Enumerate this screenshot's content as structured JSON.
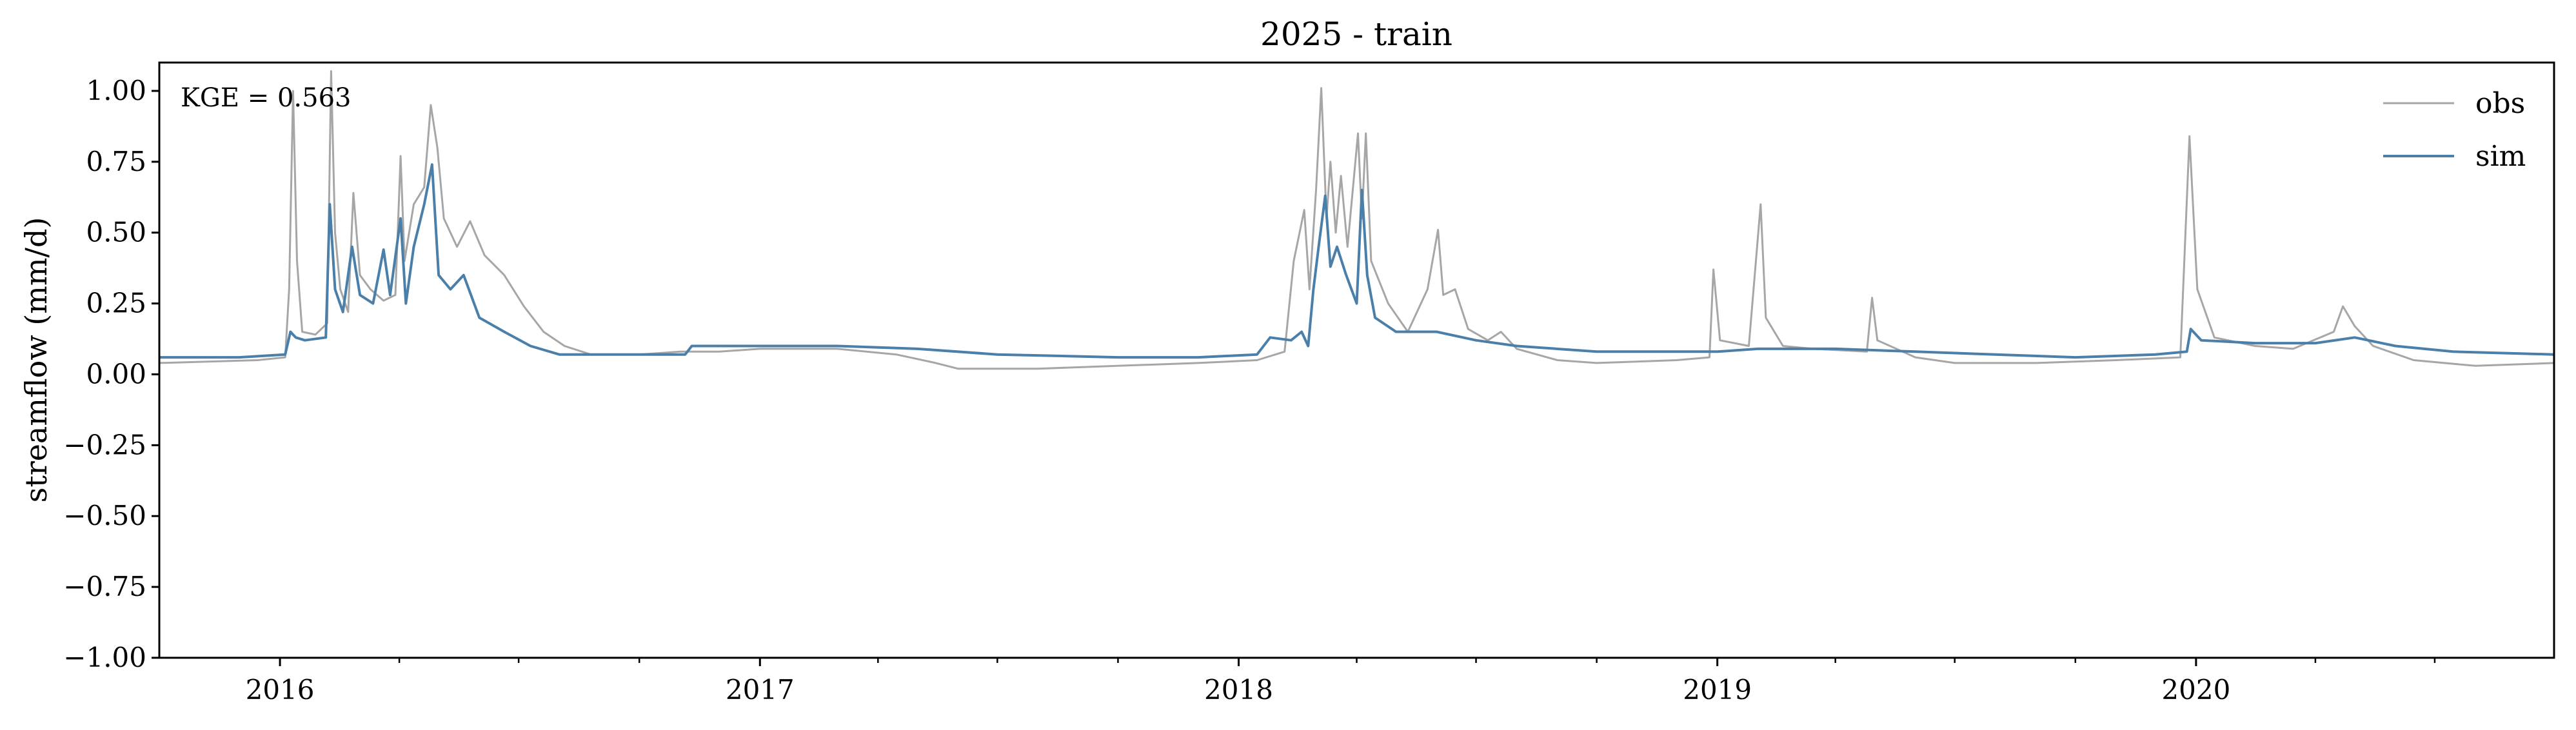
{
  "chart_data": {
    "type": "line",
    "title": "2025 - train",
    "xlabel": "",
    "ylabel": "streamflow (mm/d)",
    "xlim": [
      "2015-10-01",
      "2020-09-30"
    ],
    "ylim": [
      -1.0,
      1.1
    ],
    "grid": false,
    "legend_position": "top-right",
    "annotation": "KGE = 0.563",
    "x_ticks": [
      {
        "date": "2016-01-01",
        "label": "2016"
      },
      {
        "date": "2017-01-01",
        "label": "2017"
      },
      {
        "date": "2018-01-01",
        "label": "2018"
      },
      {
        "date": "2019-01-01",
        "label": "2019"
      },
      {
        "date": "2020-01-01",
        "label": "2020"
      }
    ],
    "x_minor_ticks": [
      "2016-04-01",
      "2016-07-01",
      "2016-10-01",
      "2017-04-01",
      "2017-07-01",
      "2017-10-01",
      "2018-04-01",
      "2018-07-01",
      "2018-10-01",
      "2019-04-01",
      "2019-07-01",
      "2019-10-01",
      "2020-04-01",
      "2020-07-01"
    ],
    "y_ticks": [
      {
        "value": 1.0,
        "label": "1.00"
      },
      {
        "value": 0.75,
        "label": "0.75"
      },
      {
        "value": 0.5,
        "label": "0.50"
      },
      {
        "value": 0.25,
        "label": "0.25"
      },
      {
        "value": 0.0,
        "label": "0.00"
      },
      {
        "value": -0.25,
        "label": "−0.25"
      },
      {
        "value": -0.5,
        "label": "−0.50"
      },
      {
        "value": -0.75,
        "label": "−0.75"
      },
      {
        "value": -1.0,
        "label": "−1.00"
      }
    ],
    "series": [
      {
        "name": "obs",
        "color": "#a6a6a6",
        "points": [
          [
            "2015-10-01",
            0.04
          ],
          [
            "2015-12-15",
            0.05
          ],
          [
            "2016-01-05",
            0.06
          ],
          [
            "2016-01-08",
            0.3
          ],
          [
            "2016-01-11",
            1.0
          ],
          [
            "2016-01-14",
            0.4
          ],
          [
            "2016-01-18",
            0.15
          ],
          [
            "2016-01-28",
            0.14
          ],
          [
            "2016-02-06",
            0.18
          ],
          [
            "2016-02-09",
            1.07
          ],
          [
            "2016-02-12",
            0.5
          ],
          [
            "2016-02-16",
            0.3
          ],
          [
            "2016-02-22",
            0.22
          ],
          [
            "2016-02-26",
            0.64
          ],
          [
            "2016-03-02",
            0.35
          ],
          [
            "2016-03-10",
            0.3
          ],
          [
            "2016-03-20",
            0.26
          ],
          [
            "2016-03-29",
            0.28
          ],
          [
            "2016-04-02",
            0.77
          ],
          [
            "2016-04-05",
            0.4
          ],
          [
            "2016-04-12",
            0.6
          ],
          [
            "2016-04-20",
            0.66
          ],
          [
            "2016-04-25",
            0.95
          ],
          [
            "2016-04-30",
            0.8
          ],
          [
            "2016-05-05",
            0.55
          ],
          [
            "2016-05-15",
            0.45
          ],
          [
            "2016-05-25",
            0.54
          ],
          [
            "2016-06-05",
            0.42
          ],
          [
            "2016-06-20",
            0.35
          ],
          [
            "2016-07-05",
            0.24
          ],
          [
            "2016-07-20",
            0.15
          ],
          [
            "2016-08-05",
            0.1
          ],
          [
            "2016-08-25",
            0.07
          ],
          [
            "2016-10-01",
            0.07
          ],
          [
            "2016-11-01",
            0.08
          ],
          [
            "2016-12-01",
            0.08
          ],
          [
            "2017-01-01",
            0.09
          ],
          [
            "2017-03-01",
            0.09
          ],
          [
            "2017-04-15",
            0.07
          ],
          [
            "2017-05-15",
            0.04
          ],
          [
            "2017-06-01",
            0.02
          ],
          [
            "2017-08-01",
            0.02
          ],
          [
            "2017-10-01",
            0.03
          ],
          [
            "2017-12-01",
            0.04
          ],
          [
            "2018-01-15",
            0.05
          ],
          [
            "2018-02-05",
            0.08
          ],
          [
            "2018-02-12",
            0.4
          ],
          [
            "2018-02-20",
            0.58
          ],
          [
            "2018-02-24",
            0.3
          ],
          [
            "2018-03-01",
            0.65
          ],
          [
            "2018-03-05",
            1.01
          ],
          [
            "2018-03-09",
            0.55
          ],
          [
            "2018-03-12",
            0.75
          ],
          [
            "2018-03-16",
            0.5
          ],
          [
            "2018-03-20",
            0.7
          ],
          [
            "2018-03-25",
            0.45
          ],
          [
            "2018-04-02",
            0.85
          ],
          [
            "2018-04-05",
            0.55
          ],
          [
            "2018-04-08",
            0.85
          ],
          [
            "2018-04-12",
            0.4
          ],
          [
            "2018-04-25",
            0.25
          ],
          [
            "2018-05-10",
            0.15
          ],
          [
            "2018-05-25",
            0.3
          ],
          [
            "2018-06-02",
            0.51
          ],
          [
            "2018-06-06",
            0.28
          ],
          [
            "2018-06-15",
            0.3
          ],
          [
            "2018-06-25",
            0.16
          ],
          [
            "2018-07-10",
            0.12
          ],
          [
            "2018-07-20",
            0.15
          ],
          [
            "2018-08-01",
            0.09
          ],
          [
            "2018-09-01",
            0.05
          ],
          [
            "2018-10-01",
            0.04
          ],
          [
            "2018-12-01",
            0.05
          ],
          [
            "2018-12-26",
            0.06
          ],
          [
            "2018-12-29",
            0.37
          ],
          [
            "2019-01-03",
            0.12
          ],
          [
            "2019-01-25",
            0.1
          ],
          [
            "2019-02-03",
            0.6
          ],
          [
            "2019-02-07",
            0.2
          ],
          [
            "2019-02-20",
            0.1
          ],
          [
            "2019-03-15",
            0.09
          ],
          [
            "2019-04-25",
            0.08
          ],
          [
            "2019-04-29",
            0.27
          ],
          [
            "2019-05-03",
            0.12
          ],
          [
            "2019-06-01",
            0.06
          ],
          [
            "2019-07-01",
            0.04
          ],
          [
            "2019-09-01",
            0.04
          ],
          [
            "2019-11-01",
            0.05
          ],
          [
            "2019-12-20",
            0.06
          ],
          [
            "2019-12-27",
            0.84
          ],
          [
            "2020-01-02",
            0.3
          ],
          [
            "2020-01-15",
            0.13
          ],
          [
            "2020-02-15",
            0.1
          ],
          [
            "2020-03-15",
            0.09
          ],
          [
            "2020-04-15",
            0.15
          ],
          [
            "2020-04-22",
            0.24
          ],
          [
            "2020-05-01",
            0.17
          ],
          [
            "2020-05-15",
            0.1
          ],
          [
            "2020-06-15",
            0.05
          ],
          [
            "2020-08-01",
            0.03
          ],
          [
            "2020-09-30",
            0.04
          ]
        ]
      },
      {
        "name": "sim",
        "color": "#4a7faa",
        "points": [
          [
            "2015-10-01",
            0.06
          ],
          [
            "2015-12-01",
            0.06
          ],
          [
            "2016-01-05",
            0.07
          ],
          [
            "2016-01-09",
            0.15
          ],
          [
            "2016-01-13",
            0.13
          ],
          [
            "2016-01-20",
            0.12
          ],
          [
            "2016-02-05",
            0.13
          ],
          [
            "2016-02-08",
            0.6
          ],
          [
            "2016-02-12",
            0.3
          ],
          [
            "2016-02-18",
            0.22
          ],
          [
            "2016-02-25",
            0.45
          ],
          [
            "2016-03-02",
            0.28
          ],
          [
            "2016-03-12",
            0.25
          ],
          [
            "2016-03-20",
            0.44
          ],
          [
            "2016-03-25",
            0.28
          ],
          [
            "2016-04-02",
            0.55
          ],
          [
            "2016-04-06",
            0.25
          ],
          [
            "2016-04-12",
            0.45
          ],
          [
            "2016-04-20",
            0.6
          ],
          [
            "2016-04-26",
            0.74
          ],
          [
            "2016-05-01",
            0.35
          ],
          [
            "2016-05-10",
            0.3
          ],
          [
            "2016-05-20",
            0.35
          ],
          [
            "2016-06-01",
            0.2
          ],
          [
            "2016-06-20",
            0.15
          ],
          [
            "2016-07-10",
            0.1
          ],
          [
            "2016-08-01",
            0.07
          ],
          [
            "2016-10-01",
            0.07
          ],
          [
            "2016-11-05",
            0.07
          ],
          [
            "2016-11-10",
            0.1
          ],
          [
            "2016-12-01",
            0.1
          ],
          [
            "2017-01-01",
            0.1
          ],
          [
            "2017-03-01",
            0.1
          ],
          [
            "2017-05-01",
            0.09
          ],
          [
            "2017-07-01",
            0.07
          ],
          [
            "2017-10-01",
            0.06
          ],
          [
            "2017-12-01",
            0.06
          ],
          [
            "2018-01-15",
            0.07
          ],
          [
            "2018-01-25",
            0.13
          ],
          [
            "2018-02-10",
            0.12
          ],
          [
            "2018-02-18",
            0.15
          ],
          [
            "2018-02-23",
            0.1
          ],
          [
            "2018-02-27",
            0.3
          ],
          [
            "2018-03-03",
            0.45
          ],
          [
            "2018-03-08",
            0.63
          ],
          [
            "2018-03-12",
            0.38
          ],
          [
            "2018-03-17",
            0.45
          ],
          [
            "2018-03-24",
            0.35
          ],
          [
            "2018-04-01",
            0.25
          ],
          [
            "2018-04-05",
            0.65
          ],
          [
            "2018-04-09",
            0.35
          ],
          [
            "2018-04-15",
            0.2
          ],
          [
            "2018-05-01",
            0.15
          ],
          [
            "2018-06-01",
            0.15
          ],
          [
            "2018-07-01",
            0.12
          ],
          [
            "2018-08-01",
            0.1
          ],
          [
            "2018-10-01",
            0.08
          ],
          [
            "2019-01-01",
            0.08
          ],
          [
            "2019-02-01",
            0.09
          ],
          [
            "2019-04-01",
            0.09
          ],
          [
            "2019-06-01",
            0.08
          ],
          [
            "2019-08-01",
            0.07
          ],
          [
            "2019-10-01",
            0.06
          ],
          [
            "2019-12-01",
            0.07
          ],
          [
            "2019-12-25",
            0.08
          ],
          [
            "2019-12-28",
            0.16
          ],
          [
            "2020-01-05",
            0.12
          ],
          [
            "2020-02-15",
            0.11
          ],
          [
            "2020-04-01",
            0.11
          ],
          [
            "2020-05-01",
            0.13
          ],
          [
            "2020-06-01",
            0.1
          ],
          [
            "2020-07-15",
            0.08
          ],
          [
            "2020-09-30",
            0.07
          ]
        ]
      }
    ]
  }
}
